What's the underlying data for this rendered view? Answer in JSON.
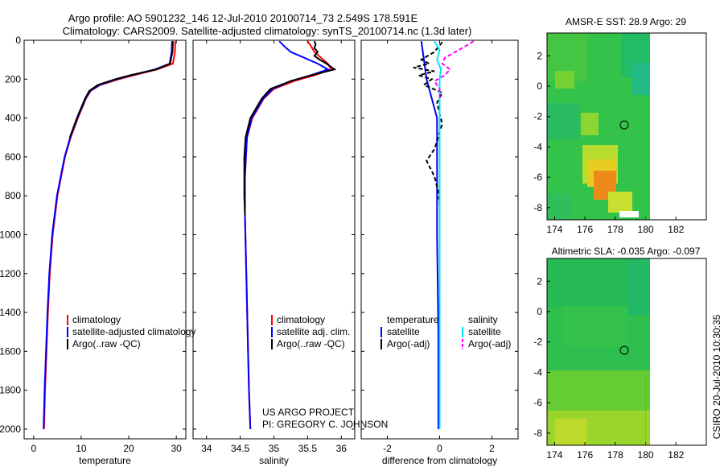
{
  "title_line1": "Argo profile: AO 5901232_146 12-Jul-2010 20100714_73 2.549S 178.591E",
  "title_line2": "Climatology: CARS2009. Satellite-adjusted climatology: synTS_20100714.nc (1.3d later)",
  "credit_line1": "US ARGO PROJECT",
  "credit_line2": "PI: GREGORY C. JOHNSON",
  "side_stamp": "CSIRO 20-Jul-2010 10:30:35",
  "colors": {
    "climatology": "#ff0000",
    "satellite": "#0000ff",
    "argo": "#000000",
    "salinity_satellite": "#00e5ff",
    "salinity_argo": "#ff00ff"
  },
  "chart_data": [
    {
      "type": "line",
      "panel": "temperature",
      "xlabel": "temperature",
      "xlim": [
        -2,
        32
      ],
      "xticks": [
        0,
        10,
        20,
        30
      ],
      "ylim": [
        0,
        2050
      ],
      "yticks": [
        0,
        200,
        400,
        600,
        800,
        1000,
        1200,
        1400,
        1600,
        1800,
        2000
      ],
      "legend": [
        "climatology",
        "satellite-adjusted climatology",
        "Argo(..raw -QC)"
      ],
      "series": [
        {
          "name": "climatology",
          "color": "#ff0000",
          "depth": [
            5,
            60,
            120,
            150,
            180,
            200,
            230,
            260,
            300,
            400,
            500,
            600,
            800,
            1000,
            1200,
            1400,
            1600,
            1800,
            2000
          ],
          "values": [
            29.8,
            29.7,
            29.3,
            26,
            21,
            18,
            14,
            12,
            11,
            9.3,
            7.8,
            6.6,
            5.0,
            4.0,
            3.4,
            3.0,
            2.7,
            2.4,
            2.2
          ]
        },
        {
          "name": "satellite-adjusted climatology",
          "color": "#0000ff",
          "depth": [
            5,
            60,
            120,
            150,
            180,
            200,
            230,
            260,
            300,
            400,
            500,
            600,
            800,
            1000,
            1200,
            1400,
            1600,
            1800,
            2000
          ],
          "values": [
            29.1,
            29.0,
            28.6,
            25.5,
            20.5,
            17.5,
            13.8,
            11.9,
            10.9,
            9.2,
            7.7,
            6.5,
            4.9,
            3.9,
            3.3,
            2.9,
            2.6,
            2.3,
            2.1
          ]
        },
        {
          "name": "Argo(..raw -QC)",
          "color": "#000000",
          "depth": [
            5,
            60,
            120,
            150,
            180,
            200,
            230,
            260,
            300,
            400,
            500
          ],
          "values": [
            29.3,
            29.2,
            28.7,
            25.8,
            20.3,
            17.2,
            13.5,
            11.7,
            10.8,
            9.1,
            7.6
          ]
        }
      ]
    },
    {
      "type": "line",
      "panel": "salinity",
      "xlabel": "salinity",
      "xlim": [
        33.8,
        36.2
      ],
      "xticks": [
        34,
        34.5,
        35,
        35.5,
        36
      ],
      "ylim": [
        0,
        2050
      ],
      "legend": [
        "climatology",
        "satellite adj. clim.",
        "Argo(..raw -QC)"
      ],
      "series": [
        {
          "name": "climatology",
          "color": "#ff0000",
          "depth": [
            5,
            30,
            60,
            90,
            120,
            150,
            180,
            210,
            250,
            300,
            400,
            500,
            700,
            900,
            1200,
            1500,
            1800,
            2000
          ],
          "values": [
            35.5,
            35.55,
            35.6,
            35.7,
            35.8,
            35.85,
            35.6,
            35.3,
            35.0,
            34.85,
            34.68,
            34.6,
            34.57,
            34.57,
            34.59,
            34.61,
            34.63,
            34.65
          ]
        },
        {
          "name": "satellite adj. clim.",
          "color": "#0000ff",
          "depth": [
            5,
            30,
            60,
            90,
            120,
            150,
            180,
            210,
            250,
            300,
            400,
            500,
            700,
            900,
            1200,
            1500,
            1800,
            2000
          ],
          "values": [
            35.08,
            35.15,
            35.25,
            35.45,
            35.65,
            35.8,
            35.55,
            35.25,
            34.98,
            34.84,
            34.67,
            34.6,
            34.57,
            34.57,
            34.59,
            34.61,
            34.63,
            34.65
          ]
        },
        {
          "name": "Argo(..raw -QC)",
          "color": "#000000",
          "depth": [
            5,
            20,
            40,
            60,
            80,
            100,
            120,
            150,
            180,
            210,
            250,
            300,
            400,
            500,
            600,
            800,
            900
          ],
          "values": [
            35.6,
            35.62,
            35.6,
            35.65,
            35.6,
            35.68,
            35.78,
            35.9,
            35.55,
            35.25,
            34.95,
            34.82,
            34.65,
            34.58,
            34.56,
            34.56,
            34.57
          ]
        }
      ]
    },
    {
      "type": "line",
      "panel": "difference",
      "xlabel": "difference from climatology",
      "xlim": [
        -3,
        3
      ],
      "xticks": [
        -2,
        0,
        2
      ],
      "ylim": [
        0,
        2050
      ],
      "legend_columns": [
        "temperature",
        "salinity"
      ],
      "legend": [
        "satellite",
        "Argo(-adj)",
        "satellite",
        "Argo(-adj)"
      ],
      "series": [
        {
          "name": "temperature satellite",
          "color": "#0000ff",
          "depth": [
            5,
            100,
            200,
            400,
            700,
            1000,
            1500,
            2000
          ],
          "values": [
            -0.7,
            -0.6,
            -0.5,
            -0.1,
            -0.1,
            -0.1,
            -0.05,
            -0.05
          ]
        },
        {
          "name": "temperature Argo(-adj)",
          "color": "#000000",
          "depth": [
            10,
            60,
            100,
            120,
            140,
            160,
            180,
            200,
            230,
            270,
            320,
            380,
            430,
            470,
            520,
            560,
            620,
            700,
            780,
            850
          ],
          "values": [
            0.1,
            -0.2,
            -0.7,
            -0.4,
            -1.0,
            -0.2,
            -0.8,
            -0.3,
            -0.6,
            0.1,
            -0.1,
            0.0,
            0.1,
            0.0,
            -0.1,
            -0.2,
            -0.5,
            -0.2,
            -0.05,
            0.0
          ]
        },
        {
          "name": "salinity satellite",
          "color": "#00e5ff",
          "depth": [
            5,
            50,
            100,
            150,
            200,
            300,
            500,
            700,
            1000,
            1500,
            2000
          ],
          "values": [
            -0.2,
            0.0,
            -0.1,
            0.05,
            0.0,
            0.0,
            0.0,
            0.0,
            0.0,
            0.0,
            0.0
          ]
        },
        {
          "name": "salinity Argo(-adj)",
          "color": "#ff00ff",
          "depth": [
            5,
            30,
            60,
            90,
            120,
            150,
            180,
            210,
            250,
            300
          ],
          "values": [
            1.3,
            1.0,
            0.6,
            0.2,
            0.1,
            0.4,
            0.2,
            -0.2,
            0.0,
            0.0
          ]
        }
      ]
    },
    {
      "type": "heatmap",
      "panel": "sst_map",
      "title": "AMSR-E SST: 28.9 Argo: 29",
      "xlim": [
        173.5,
        184
      ],
      "ylim": [
        -8.8,
        3.5
      ],
      "xticks": [
        174,
        176,
        178,
        180,
        182
      ],
      "yticks": [
        -8,
        -6,
        -4,
        -2,
        0,
        2
      ],
      "data_extent_lon": [
        173.5,
        180
      ],
      "marker": {
        "lon": 178.591,
        "lat": -2.549
      }
    },
    {
      "type": "heatmap",
      "panel": "sla_map",
      "title": "Altimetric SLA: -0.035 Argo: -0.097",
      "xlim": [
        173.5,
        184
      ],
      "ylim": [
        -8.8,
        3.5
      ],
      "xticks": [
        174,
        176,
        178,
        180,
        182
      ],
      "yticks": [
        -8,
        -6,
        -4,
        -2,
        0,
        2
      ],
      "data_extent_lon": [
        173.5,
        180
      ],
      "marker": {
        "lon": 178.591,
        "lat": -2.549
      }
    }
  ]
}
